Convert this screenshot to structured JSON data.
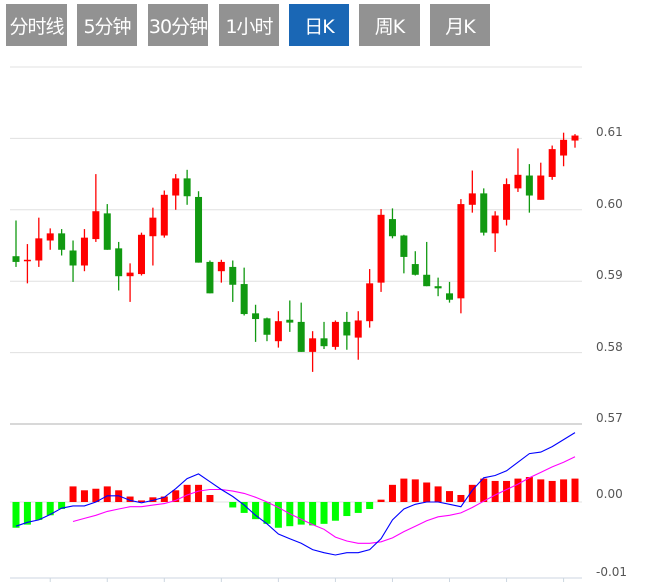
{
  "tabs": [
    {
      "label": "分时线",
      "active": false
    },
    {
      "label": "5分钟",
      "active": false
    },
    {
      "label": "30分钟",
      "active": false
    },
    {
      "label": "1小时",
      "active": false
    },
    {
      "label": "日K",
      "active": true
    },
    {
      "label": "周K",
      "active": false
    },
    {
      "label": "月K",
      "active": false
    }
  ],
  "colors": {
    "up": "#ff0000",
    "down": "#119911",
    "macd_up": "#ff0000",
    "macd_down": "#00ff00",
    "dif": "#0000ff",
    "dea": "#ff00ff",
    "tab": "#929292",
    "tab_active": "#1a67b5",
    "grid": "#e0e0e0"
  },
  "chart_data": [
    {
      "type": "candlestick",
      "y_ticks": [
        "0.61",
        "0.60",
        "0.59",
        "0.58",
        "0.57"
      ],
      "ylim": [
        0.57,
        0.62
      ],
      "grid": true,
      "ohlc": [
        [
          0.5935,
          0.5985,
          0.592,
          0.5927
        ],
        [
          0.5928,
          0.5952,
          0.5897,
          0.593
        ],
        [
          0.5929,
          0.5989,
          0.592,
          0.596
        ],
        [
          0.5957,
          0.5974,
          0.5944,
          0.5967
        ],
        [
          0.5967,
          0.5973,
          0.5936,
          0.5944
        ],
        [
          0.5943,
          0.5957,
          0.5899,
          0.5922
        ],
        [
          0.5922,
          0.5973,
          0.5914,
          0.5961
        ],
        [
          0.5959,
          0.605,
          0.5955,
          0.5998
        ],
        [
          0.5995,
          0.6008,
          0.5944,
          0.5944
        ],
        [
          0.5946,
          0.5955,
          0.5887,
          0.5907
        ],
        [
          0.5907,
          0.5925,
          0.5871,
          0.5912
        ],
        [
          0.591,
          0.5968,
          0.5908,
          0.5965
        ],
        [
          0.5963,
          0.6003,
          0.5922,
          0.5989
        ],
        [
          0.5964,
          0.6027,
          0.5961,
          0.6021
        ],
        [
          0.602,
          0.605,
          0.6,
          0.6044
        ],
        [
          0.6044,
          0.6056,
          0.6007,
          0.6019
        ],
        [
          0.6018,
          0.6026,
          0.5926,
          0.5926
        ],
        [
          0.5927,
          0.5929,
          0.5883,
          0.5883
        ],
        [
          0.5914,
          0.593,
          0.5898,
          0.5927
        ],
        [
          0.592,
          0.5929,
          0.5871,
          0.5895
        ],
        [
          0.5896,
          0.5919,
          0.5852,
          0.5854
        ],
        [
          0.5855,
          0.5867,
          0.5815,
          0.5847
        ],
        [
          0.5848,
          0.5849,
          0.5816,
          0.5825
        ],
        [
          0.5816,
          0.5858,
          0.5807,
          0.5844
        ],
        [
          0.5846,
          0.5873,
          0.5829,
          0.5842
        ],
        [
          0.5843,
          0.587,
          0.5801,
          0.5801
        ],
        [
          0.5801,
          0.583,
          0.5773,
          0.582
        ],
        [
          0.582,
          0.5843,
          0.5805,
          0.5809
        ],
        [
          0.5808,
          0.5845,
          0.5804,
          0.5843
        ],
        [
          0.5843,
          0.5857,
          0.5804,
          0.5824
        ],
        [
          0.5821,
          0.5858,
          0.579,
          0.5845
        ],
        [
          0.5844,
          0.5917,
          0.5835,
          0.5897
        ],
        [
          0.5898,
          0.6001,
          0.5885,
          0.5993
        ],
        [
          0.5987,
          0.6002,
          0.596,
          0.5963
        ],
        [
          0.5964,
          0.5965,
          0.5911,
          0.5934
        ],
        [
          0.5924,
          0.5942,
          0.5908,
          0.5909
        ],
        [
          0.5909,
          0.5955,
          0.5893,
          0.5893
        ],
        [
          0.5893,
          0.5905,
          0.5879,
          0.589
        ],
        [
          0.5883,
          0.5899,
          0.587,
          0.5874
        ],
        [
          0.5876,
          0.6015,
          0.5855,
          0.6008
        ],
        [
          0.6007,
          0.6055,
          0.5996,
          0.6023
        ],
        [
          0.6023,
          0.603,
          0.5964,
          0.5968
        ],
        [
          0.5967,
          0.5998,
          0.5941,
          0.5992
        ],
        [
          0.5986,
          0.6044,
          0.5978,
          0.6036
        ],
        [
          0.603,
          0.6086,
          0.6025,
          0.6049
        ],
        [
          0.6048,
          0.6064,
          0.5996,
          0.602
        ],
        [
          0.6014,
          0.6066,
          0.6014,
          0.6048
        ],
        [
          0.6046,
          0.609,
          0.6042,
          0.6085
        ],
        [
          0.6076,
          0.6108,
          0.6061,
          0.6098
        ],
        [
          0.6097,
          0.6106,
          0.6087,
          0.6104
        ]
      ]
    },
    {
      "type": "bar+line",
      "y_ticks": [
        "0.00",
        "-0.01"
      ],
      "ylim": [
        -0.01,
        0.01
      ],
      "macd": [
        -0.0033,
        -0.0029,
        -0.0023,
        -0.0017,
        -0.0009,
        0.002,
        0.0015,
        0.0017,
        0.002,
        0.0015,
        0.0007,
        0.0002,
        0.0006,
        0.0007,
        0.0015,
        0.0022,
        0.0022,
        0.0009,
        0.0,
        -0.0007,
        -0.0014,
        -0.0022,
        -0.0028,
        -0.0033,
        -0.0031,
        -0.0029,
        -0.003,
        -0.0028,
        -0.0024,
        -0.0018,
        -0.0014,
        -0.0009,
        0.0003,
        0.0022,
        0.003,
        0.0029,
        0.0025,
        0.002,
        0.0014,
        0.0009,
        0.0022,
        0.003,
        0.0027,
        0.0027,
        0.003,
        0.0032,
        0.0029,
        0.0027,
        0.0029,
        0.003
      ],
      "dif": [
        -0.0031,
        -0.0026,
        -0.0023,
        -0.0016,
        -0.0008,
        -0.0005,
        -0.0005,
        0.0,
        0.0008,
        0.0008,
        0.0002,
        -0.0001,
        0.0002,
        0.0006,
        0.0017,
        0.003,
        0.0036,
        0.0026,
        0.0016,
        0.0007,
        -0.0004,
        -0.0017,
        -0.0028,
        -0.0041,
        -0.0047,
        -0.0053,
        -0.0061,
        -0.0065,
        -0.0068,
        -0.0065,
        -0.0065,
        -0.0061,
        -0.0047,
        -0.0023,
        -0.0009,
        -0.0003,
        0.0,
        0.0,
        -0.0003,
        -0.0006,
        0.0015,
        0.0031,
        0.0034,
        0.004,
        0.0051,
        0.0062,
        0.0064,
        0.0071,
        0.008,
        0.0089
      ],
      "dea": [
        null,
        null,
        null,
        null,
        null,
        -0.0025,
        -0.0021,
        -0.0017,
        -0.0012,
        -0.0009,
        -0.0006,
        -0.0006,
        -0.0004,
        -0.0002,
        0.0002,
        0.0009,
        0.0014,
        0.0016,
        0.0016,
        0.0014,
        0.0011,
        0.0006,
        0.0,
        -0.0007,
        -0.0015,
        -0.0022,
        -0.0029,
        -0.0035,
        -0.0045,
        -0.005,
        -0.0053,
        -0.0053,
        -0.0051,
        -0.0046,
        -0.0038,
        -0.0031,
        -0.0024,
        -0.0019,
        -0.0017,
        -0.0014,
        -0.0007,
        0.0001,
        0.0009,
        0.0016,
        0.0023,
        0.0031,
        0.0038,
        0.0045,
        0.0051,
        0.0058
      ]
    }
  ]
}
